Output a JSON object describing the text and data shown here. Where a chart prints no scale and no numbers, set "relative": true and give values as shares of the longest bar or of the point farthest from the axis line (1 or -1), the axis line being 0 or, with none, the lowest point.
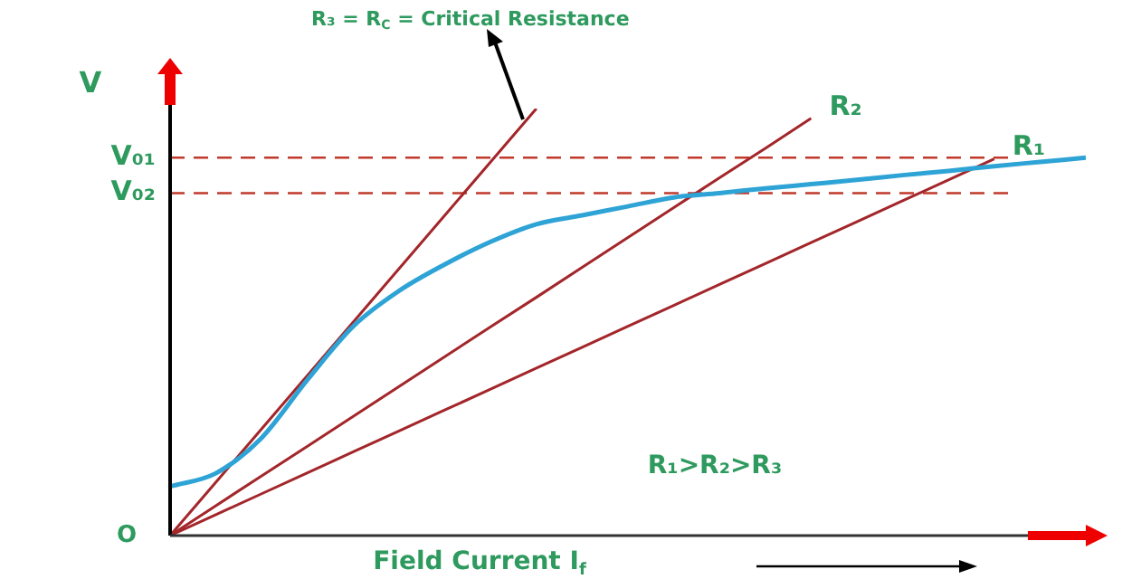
{
  "chart_data": {
    "type": "line",
    "relative": true,
    "xlabel": "Field Current I$_{f}$",
    "ylabel": "V",
    "categories": [
      null,
      null,
      null,
      null,
      null,
      null,
      null,
      null,
      null,
      null,
      null,
      null,
      null,
      null,
      null,
      null,
      null,
      null,
      null,
      null,
      null
    ],
    "series": [
      {
        "color": "#2ea3d5",
        "values": [
          0.115,
          0.146,
          0.229,
          0.365,
          0.49,
          0.573,
          0.635,
          0.688,
          0.729,
          0.75,
          0.771,
          0.792,
          0.802,
          0.813,
          0.823,
          0.833,
          0.844,
          0.854,
          0.865,
          0.875,
          0.885
        ]
      },
      {
        "color": "#a3262a",
        "values": [
          0,
          0.125,
          0.25,
          0.375,
          0.5,
          0.625,
          0.75,
          0.875,
          1,
          null,
          null,
          null,
          null,
          null,
          null,
          null,
          null,
          null,
          null,
          null,
          null
        ]
      },
      {
        "name": "R₂",
        "color": "#a3262a",
        "values": [
          0,
          0.07,
          0.14,
          0.209,
          0.279,
          0.349,
          0.419,
          0.489,
          0.558,
          0.628,
          0.698,
          0.768,
          0.838,
          0.907,
          0.977,
          null,
          null,
          null,
          null,
          null,
          null
        ]
      },
      {
        "name": "R₁",
        "color": "#a3262a",
        "values": [
          0,
          0.049,
          0.098,
          0.147,
          0.196,
          0.245,
          0.294,
          0.343,
          0.392,
          0.441,
          0.49,
          0.539,
          0.588,
          0.637,
          0.686,
          0.735,
          0.784,
          0.833,
          0.882,
          null,
          null
        ]
      }
    ],
    "ref_lines": [
      {
        "axis": "y",
        "value": 0.885,
        "label": "V₀₁",
        "color": "#c0392b",
        "line_style": "dashed"
      },
      {
        "axis": "y",
        "value": 0.802,
        "label": "V₀₂",
        "color": "#c0392b",
        "line_style": "dashed"
      }
    ],
    "annotations": [
      "R₃ = R$_{C}$ = Critical Resistance",
      "R₁>R₂>R₃",
      "O"
    ],
    "legend": false,
    "grid": false,
    "tick_labels": false,
    "marker": "none",
    "line_style": "solid"
  }
}
